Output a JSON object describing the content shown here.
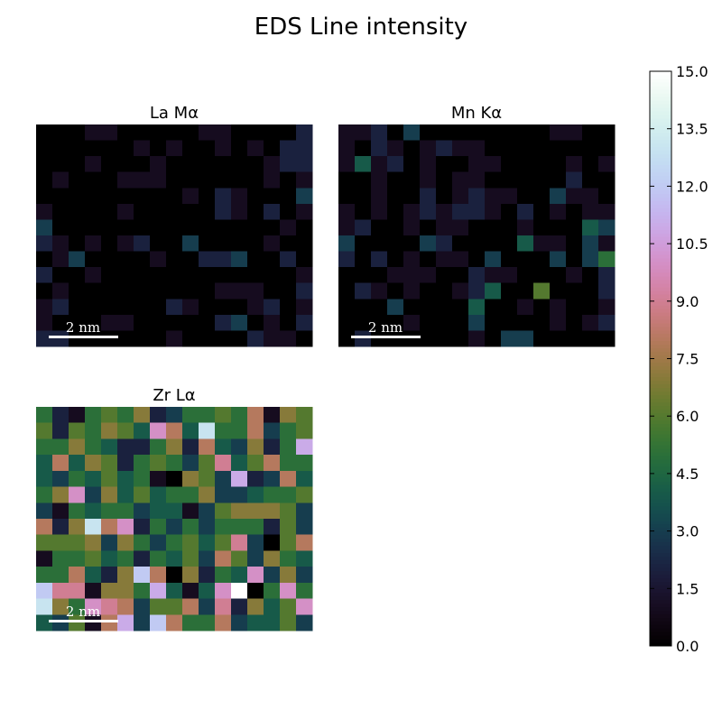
{
  "chart_data": {
    "type": "heatmap",
    "title": "EDS Line intensity",
    "colorscale": "cubehelix",
    "colorbar": {
      "vmin": 0.0,
      "vmax": 15.0,
      "ticks": [
        "0.0",
        "1.5",
        "3.0",
        "4.5",
        "6.0",
        "7.5",
        "9.0",
        "10.5",
        "12.0",
        "13.5",
        "15.0"
      ]
    },
    "scalebar_label": "2 nm",
    "maps": [
      {
        "title": "La Mα",
        "rows": 14,
        "cols": 17,
        "values": [
          [
            0,
            0,
            0,
            1,
            1,
            0,
            0,
            0,
            0,
            0,
            1,
            1,
            0,
            0,
            0,
            0,
            2
          ],
          [
            0,
            0,
            0,
            0,
            0,
            0,
            1,
            0,
            1,
            0,
            0,
            1,
            0,
            1,
            0,
            2,
            2
          ],
          [
            0,
            0,
            0,
            1,
            0,
            0,
            0,
            1,
            0,
            0,
            0,
            0,
            0,
            0,
            1,
            2,
            2
          ],
          [
            0,
            1,
            0,
            0,
            0,
            1,
            1,
            1,
            0,
            0,
            0,
            0,
            0,
            0,
            1,
            0,
            1
          ],
          [
            0,
            0,
            0,
            0,
            0,
            0,
            0,
            0,
            0,
            1,
            0,
            2,
            1,
            0,
            0,
            0,
            3
          ],
          [
            1,
            0,
            0,
            0,
            0,
            1,
            0,
            0,
            0,
            0,
            0,
            2,
            1,
            0,
            2,
            0,
            1
          ],
          [
            3,
            0,
            0,
            0,
            0,
            0,
            0,
            0,
            0,
            0,
            0,
            0,
            0,
            0,
            0,
            1,
            0
          ],
          [
            2,
            1,
            0,
            1,
            0,
            1,
            2,
            0,
            0,
            3,
            0,
            0,
            0,
            0,
            1,
            0,
            0
          ],
          [
            0,
            1,
            3,
            0,
            0,
            0,
            0,
            1,
            0,
            0,
            2,
            2,
            3,
            0,
            0,
            2,
            0
          ],
          [
            2,
            0,
            0,
            1,
            0,
            0,
            0,
            0,
            0,
            0,
            0,
            0,
            0,
            0,
            0,
            0,
            1
          ],
          [
            0,
            1,
            0,
            0,
            0,
            0,
            0,
            0,
            0,
            0,
            0,
            1,
            1,
            1,
            0,
            0,
            2
          ],
          [
            1,
            2,
            0,
            0,
            0,
            0,
            0,
            0,
            2,
            1,
            0,
            0,
            0,
            1,
            2,
            0,
            1
          ],
          [
            1,
            0,
            0,
            0,
            1,
            1,
            0,
            0,
            0,
            0,
            0,
            2,
            3,
            0,
            1,
            0,
            2
          ],
          [
            2,
            2,
            0,
            0,
            0,
            0,
            0,
            0,
            1,
            0,
            0,
            0,
            0,
            2,
            1,
            1,
            0
          ]
        ]
      },
      {
        "title": "Mn Kα",
        "rows": 14,
        "cols": 17,
        "values": [
          [
            1,
            1,
            2,
            0,
            3,
            0,
            0,
            0,
            0,
            0,
            0,
            0,
            0,
            1,
            1,
            0,
            0
          ],
          [
            1,
            0,
            2,
            1,
            0,
            1,
            2,
            1,
            1,
            0,
            0,
            0,
            0,
            0,
            0,
            0,
            0
          ],
          [
            1,
            4,
            1,
            2,
            0,
            1,
            0,
            0,
            1,
            1,
            0,
            0,
            0,
            0,
            1,
            0,
            1
          ],
          [
            0,
            0,
            1,
            0,
            0,
            1,
            0,
            1,
            1,
            0,
            0,
            0,
            0,
            0,
            2,
            0,
            0
          ],
          [
            0,
            0,
            1,
            0,
            0,
            2,
            0,
            1,
            2,
            1,
            1,
            0,
            0,
            3,
            1,
            1,
            0
          ],
          [
            1,
            0,
            1,
            0,
            1,
            2,
            1,
            2,
            2,
            1,
            0,
            2,
            0,
            1,
            0,
            1,
            1
          ],
          [
            1,
            2,
            0,
            0,
            1,
            0,
            1,
            1,
            0,
            0,
            0,
            1,
            0,
            0,
            0,
            4,
            3
          ],
          [
            3,
            0,
            0,
            0,
            0,
            3,
            2,
            0,
            0,
            0,
            0,
            4,
            1,
            1,
            0,
            3,
            1
          ],
          [
            2,
            0,
            2,
            0,
            1,
            0,
            1,
            1,
            0,
            3,
            0,
            0,
            0,
            3,
            0,
            3,
            5
          ],
          [
            0,
            0,
            0,
            1,
            1,
            1,
            0,
            0,
            2,
            1,
            1,
            0,
            0,
            0,
            1,
            0,
            2
          ],
          [
            0,
            2,
            1,
            0,
            1,
            0,
            0,
            1,
            2,
            4,
            0,
            0,
            6,
            0,
            0,
            0,
            2
          ],
          [
            0,
            0,
            0,
            3,
            0,
            0,
            0,
            0,
            4,
            0,
            0,
            1,
            0,
            1,
            0,
            0,
            1
          ],
          [
            0,
            0,
            0,
            0,
            1,
            0,
            0,
            0,
            3,
            0,
            0,
            0,
            0,
            1,
            0,
            1,
            2
          ],
          [
            0,
            2,
            0,
            0,
            0,
            0,
            0,
            0,
            1,
            0,
            3,
            3,
            0,
            0,
            0,
            0,
            0
          ]
        ]
      },
      {
        "title": "Zr Lα",
        "rows": 14,
        "cols": 17,
        "values": [
          [
            5,
            2,
            1,
            5,
            6,
            5,
            7,
            2,
            3,
            5,
            5,
            6,
            5,
            8,
            1,
            7,
            6
          ],
          [
            6,
            2,
            6,
            5,
            7,
            6,
            4,
            10,
            8,
            4,
            13,
            5,
            5,
            8,
            3,
            5,
            6
          ],
          [
            5,
            5,
            7,
            5,
            4,
            2,
            2,
            5,
            7,
            2,
            8,
            4,
            3,
            7,
            2,
            5,
            11
          ],
          [
            4,
            8,
            4,
            7,
            6,
            2,
            5,
            6,
            5,
            3,
            6,
            9,
            4,
            6,
            8,
            5,
            5
          ],
          [
            4,
            3,
            5,
            4,
            6,
            4,
            5,
            1,
            0,
            7,
            6,
            3,
            11,
            2,
            3,
            8,
            4
          ],
          [
            5,
            7,
            10,
            3,
            7,
            4,
            6,
            4,
            5,
            5,
            7,
            3,
            3,
            4,
            5,
            5,
            6
          ],
          [
            3,
            1,
            5,
            4,
            5,
            5,
            3,
            4,
            4,
            1,
            3,
            6,
            7,
            7,
            7,
            6,
            3
          ],
          [
            8,
            2,
            7,
            13,
            8,
            10,
            2,
            5,
            3,
            5,
            3,
            5,
            5,
            5,
            2,
            6,
            3
          ],
          [
            6,
            6,
            6,
            7,
            3,
            7,
            5,
            3,
            5,
            6,
            4,
            6,
            9,
            3,
            0,
            6,
            8
          ],
          [
            1,
            5,
            5,
            6,
            4,
            5,
            2,
            5,
            4,
            6,
            3,
            8,
            6,
            3,
            7,
            5,
            4
          ],
          [
            5,
            5,
            8,
            4,
            2,
            7,
            12,
            8,
            0,
            7,
            2,
            5,
            4,
            10,
            3,
            7,
            3
          ],
          [
            12,
            9,
            9,
            1,
            7,
            7,
            5,
            11,
            4,
            1,
            4,
            10,
            15,
            0,
            5,
            10,
            5
          ],
          [
            13,
            7,
            5,
            10,
            9,
            8,
            3,
            6,
            6,
            8,
            3,
            9,
            2,
            7,
            4,
            6,
            10
          ],
          [
            4,
            3,
            6,
            1,
            8,
            11,
            3,
            12,
            8,
            5,
            5,
            8,
            3,
            4,
            4,
            6,
            3
          ]
        ]
      }
    ]
  }
}
